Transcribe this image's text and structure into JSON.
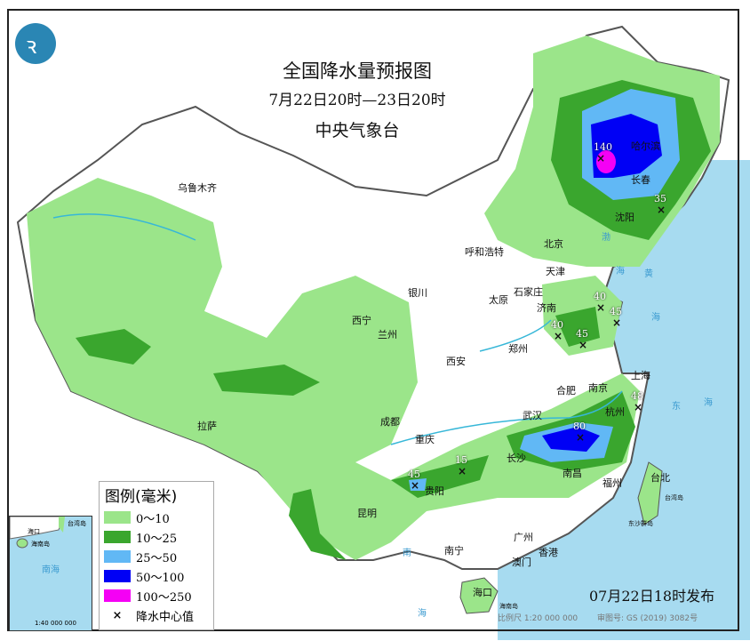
{
  "title": "全国降水量预报图",
  "period": "7月22日20时—23日20时",
  "issuer": "中央气象台",
  "publish_time": "07月22日18时发布",
  "scale": "比例尺 1:20 000 000",
  "review_no": "审图号: GS (2019) 3082号",
  "logo": "cma-logo",
  "legend": {
    "title": "图例(毫米)",
    "items": [
      {
        "label": "0～10",
        "color": "#9be58a"
      },
      {
        "label": "10～25",
        "color": "#3aa62e"
      },
      {
        "label": "25～50",
        "color": "#61b8f5"
      },
      {
        "label": "50～100",
        "color": "#0000f5"
      },
      {
        "label": "100～250",
        "color": "#f500f5"
      }
    ],
    "center_label": "降水中心值",
    "center_symbol": "×"
  },
  "inset": {
    "sea": "南海",
    "island": "海南岛",
    "city": "海口",
    "taiwan": "台湾岛",
    "scale": "1:40 000 000"
  },
  "cities": [
    "乌鲁木齐",
    "拉萨",
    "西宁",
    "兰州",
    "银川",
    "呼和浩特",
    "北京",
    "天津",
    "石家庄",
    "太原",
    "济南",
    "郑州",
    "西安",
    "成都",
    "重庆",
    "贵阳",
    "昆明",
    "南宁",
    "广州",
    "香港",
    "澳门",
    "海口",
    "武汉",
    "长沙",
    "南昌",
    "合肥",
    "南京",
    "上海",
    "杭州",
    "福州",
    "台北",
    "哈尔滨",
    "长春",
    "沈阳"
  ],
  "rain_centers": [
    "140",
    "35",
    "40",
    "40",
    "45",
    "45",
    "48",
    "80",
    "15",
    "45"
  ],
  "seas": [
    "渤",
    "海",
    "黄",
    "海",
    "东",
    "海",
    "南",
    "海"
  ],
  "islands": [
    "台湾岛",
    "海南岛",
    "东沙群岛"
  ]
}
